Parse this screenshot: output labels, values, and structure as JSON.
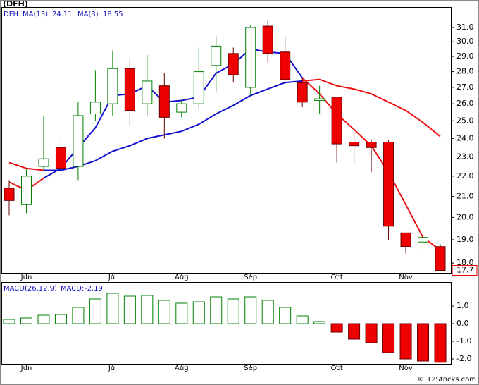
{
  "chart_data": [
    {
      "type": "candlestick",
      "title": "(DFH)",
      "symbol": "DFH",
      "categories": [
        null,
        "Jun",
        null,
        null,
        null,
        null,
        "Jul",
        null,
        null,
        null,
        "Aug",
        null,
        null,
        null,
        "Sep",
        null,
        null,
        null,
        null,
        "Oct",
        null,
        null,
        null,
        "Nov",
        null,
        null
      ],
      "open": [
        21.4,
        20.6,
        22.5,
        23.5,
        22.5,
        25.4,
        26.0,
        28.2,
        26.0,
        27.1,
        25.5,
        26.0,
        28.4,
        29.2,
        27.0,
        31.1,
        29.3,
        27.3,
        26.2,
        26.4,
        23.8,
        23.8,
        23.8,
        19.3,
        18.9,
        18.7
      ],
      "high": [
        21.8,
        22.4,
        25.3,
        23.9,
        26.1,
        28.1,
        29.4,
        28.8,
        29.1,
        27.9,
        26.2,
        29.6,
        30.4,
        29.6,
        31.2,
        31.5,
        30.4,
        27.6,
        27.1,
        26.4,
        24.4,
        23.9,
        23.9,
        19.3,
        20.0,
        18.8
      ],
      "low": [
        20.1,
        20.2,
        22.3,
        22.0,
        21.8,
        25.0,
        25.3,
        24.7,
        25.3,
        24.0,
        25.2,
        25.7,
        26.7,
        27.3,
        26.5,
        28.6,
        27.3,
        25.8,
        25.4,
        22.7,
        22.6,
        22.2,
        19.0,
        18.4,
        18.3,
        17.7
      ],
      "close": [
        20.8,
        22.0,
        22.9,
        22.4,
        25.3,
        26.1,
        28.2,
        25.6,
        27.4,
        25.2,
        26.0,
        28.0,
        29.7,
        27.8,
        31.0,
        29.2,
        27.5,
        26.1,
        26.3,
        23.7,
        23.6,
        23.5,
        19.6,
        18.7,
        19.1,
        17.7
      ],
      "up_color": "#008000",
      "down_color": "#ee0000",
      "series": [
        {
          "name": "MA(13)",
          "color": "#ee1111",
          "last_value": 24.11,
          "values": [
            22.7,
            22.4,
            22.3,
            22.3,
            22.5,
            22.8,
            23.3,
            23.6,
            24.0,
            24.2,
            24.4,
            24.8,
            25.4,
            25.9,
            26.5,
            26.9,
            27.3,
            27.4,
            27.5,
            27.1,
            26.9,
            26.6,
            26.1,
            25.6,
            24.9,
            24.11
          ]
        },
        {
          "name": "MA(3)",
          "color": "#1010d0",
          "last_value": 18.55,
          "values": [
            21.7,
            21.3,
            21.9,
            22.4,
            23.5,
            24.6,
            26.5,
            26.6,
            27.1,
            26.1,
            26.2,
            26.4,
            27.9,
            28.5,
            29.5,
            29.3,
            29.2,
            27.6,
            26.6,
            25.4,
            24.5,
            23.6,
            22.2,
            20.6,
            19.1,
            18.55
          ]
        }
      ],
      "log": true,
      "ylim": [
        17.6,
        32.5
      ],
      "yticks": [
        {
          "value": 18,
          "label": "18.0"
        },
        {
          "value": 19,
          "label": "19.0"
        },
        {
          "value": 20,
          "label": "20.0"
        },
        {
          "value": 21,
          "label": "21.0"
        },
        {
          "value": 22,
          "label": "22.0"
        },
        {
          "value": 23,
          "label": "23.0"
        },
        {
          "value": 24,
          "label": "24.0"
        },
        {
          "value": 25,
          "label": "25.0"
        },
        {
          "value": 26,
          "label": "26.0"
        },
        {
          "value": 27,
          "label": "27.0"
        },
        {
          "value": 28,
          "label": "28.0"
        },
        {
          "value": 29,
          "label": "29.0"
        },
        {
          "value": 30,
          "label": "30.0"
        },
        {
          "value": 31,
          "label": "31.0"
        }
      ]
    },
    {
      "type": "bar",
      "title": "MACD(26,12,9)",
      "value_prefix": "MACD:",
      "values": [
        0.24,
        0.32,
        0.48,
        0.52,
        0.92,
        1.4,
        1.72,
        1.56,
        1.6,
        1.32,
        1.16,
        1.24,
        1.52,
        1.4,
        1.52,
        1.32,
        0.92,
        0.44,
        0.12,
        -0.48,
        -0.88,
        -1.08,
        -1.64,
        -2.0,
        -2.12,
        -2.19
      ],
      "up_color": "#008000",
      "down_color": "#ee0000",
      "ylim": [
        -2.28,
        2.36
      ],
      "yticks": [
        {
          "value": -2,
          "label": "-2.0"
        },
        {
          "value": -1,
          "label": "-1.0"
        },
        {
          "value": 0,
          "label": "0.0"
        },
        {
          "value": 1,
          "label": "1.0"
        }
      ]
    }
  ],
  "footer": "© 12Stocks.com"
}
